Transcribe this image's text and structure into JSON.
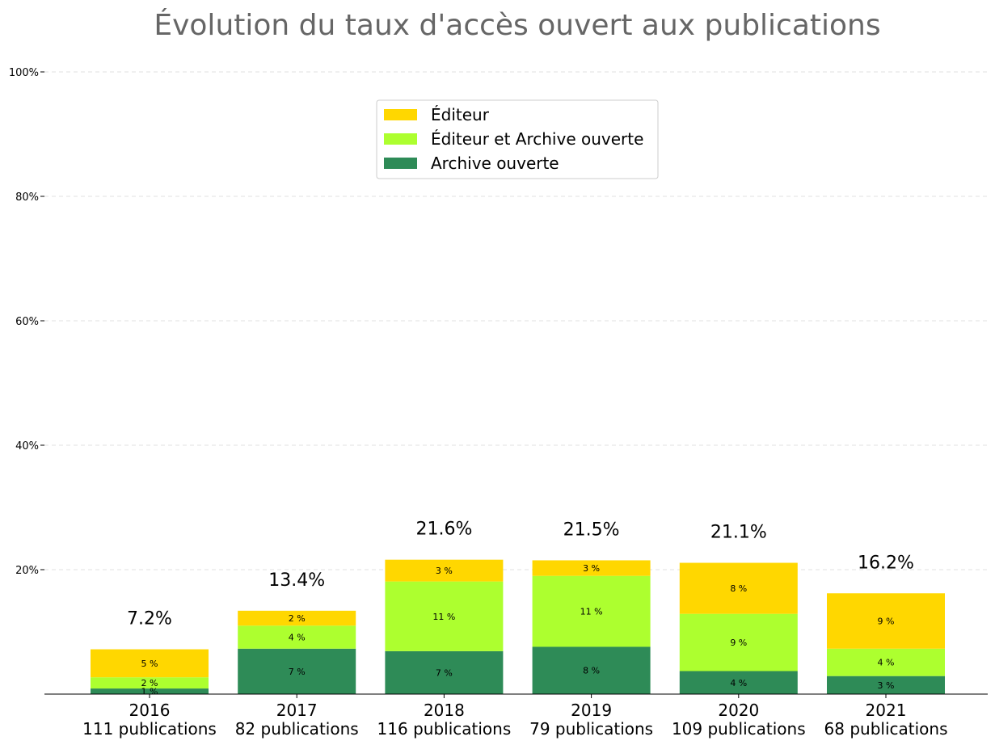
{
  "chart_data": {
    "type": "bar",
    "stacked": true,
    "title": "Évolution du taux d'accès ouvert aux publications",
    "xlabel": "",
    "ylabel": "",
    "ylim": [
      0,
      100
    ],
    "yticks": [
      20,
      40,
      60,
      80,
      100
    ],
    "ytick_labels": [
      "20%",
      "40%",
      "60%",
      "80%",
      "100%"
    ],
    "grid": "horizontal dashed",
    "legend_position": "top-center",
    "categories": [
      "2016",
      "2017",
      "2018",
      "2019",
      "2020",
      "2021"
    ],
    "category_sublabels": [
      "111 publications",
      "82 publications",
      "116 publications",
      "79 publications",
      "109 publications",
      "68 publications"
    ],
    "totals": [
      7.2,
      13.4,
      21.6,
      21.5,
      21.1,
      16.2
    ],
    "total_labels": [
      "7.2%",
      "13.4%",
      "21.6%",
      "21.5%",
      "21.1%",
      "16.2%"
    ],
    "series": [
      {
        "name": "Archive ouverte",
        "color": "#2e8b57",
        "values": [
          0.9,
          7.3,
          6.9,
          7.6,
          3.7,
          2.9
        ],
        "labels": [
          "1 %",
          "7 %",
          "7 %",
          "8 %",
          "4 %",
          "3 %"
        ]
      },
      {
        "name": "Éditeur et Archive ouverte",
        "color": "#adff2f",
        "values": [
          1.8,
          3.7,
          11.2,
          11.4,
          9.2,
          4.4
        ],
        "labels": [
          "2 %",
          "4 %",
          "11 %",
          "11 %",
          "9 %",
          "4 %"
        ]
      },
      {
        "name": "Éditeur",
        "color": "#ffd700",
        "values": [
          4.5,
          2.4,
          3.5,
          2.5,
          8.2,
          8.9
        ],
        "labels": [
          "5 %",
          "2 %",
          "3 %",
          "3 %",
          "8 %",
          "9 %"
        ]
      }
    ],
    "legend_order": [
      2,
      1,
      0
    ]
  }
}
